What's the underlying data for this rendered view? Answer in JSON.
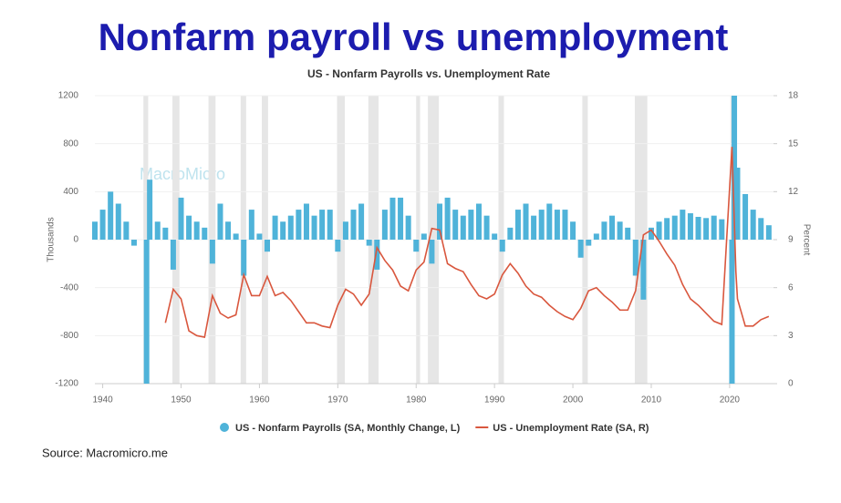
{
  "header": {
    "title": "Nonfarm payroll vs unemployment"
  },
  "chart_data": {
    "type": "bar-line",
    "title": "US - Nonfarm Payrolls vs. Unemployment Rate",
    "watermark": "MacroMicro",
    "ylabel": "Thousands",
    "y2label": "Percent",
    "xlim": [
      1939,
      2025.6
    ],
    "xticks": [
      1940,
      1950,
      1960,
      1970,
      1980,
      1990,
      2000,
      2010,
      2020
    ],
    "ylim": [
      -1200,
      1200
    ],
    "yticks": [
      -1200,
      -800,
      -400,
      0,
      400,
      800,
      1200
    ],
    "y2lim": [
      0,
      18
    ],
    "y2ticks": [
      0,
      3,
      6,
      9,
      12,
      15,
      18
    ],
    "recessions": [
      [
        1945.2,
        1945.8
      ],
      [
        1948.9,
        1949.8
      ],
      [
        1953.5,
        1954.4
      ],
      [
        1957.6,
        1958.3
      ],
      [
        1960.3,
        1961.1
      ],
      [
        1969.9,
        1970.9
      ],
      [
        1973.9,
        1975.2
      ],
      [
        1980.0,
        1980.5
      ],
      [
        1981.5,
        1982.9
      ],
      [
        1990.5,
        1991.2
      ],
      [
        2001.2,
        2001.9
      ],
      [
        2007.9,
        2009.5
      ],
      [
        2020.1,
        2020.3
      ]
    ],
    "series": [
      {
        "name": "US - Nonfarm Payrolls (SA, Monthly Change, L)",
        "color": "#4fb3d9",
        "kind": "bar",
        "x": [
          1939,
          1940,
          1941,
          1942,
          1943,
          1944,
          1945.6,
          1946,
          1947,
          1948,
          1949,
          1950,
          1951,
          1952,
          1953,
          1954,
          1955,
          1956,
          1957,
          1958,
          1959,
          1960,
          1961,
          1962,
          1963,
          1964,
          1965,
          1966,
          1967,
          1968,
          1969,
          1970,
          1971,
          1972,
          1973,
          1974,
          1975,
          1976,
          1977,
          1978,
          1979,
          1980,
          1981,
          1982,
          1983,
          1984,
          1985,
          1986,
          1987,
          1988,
          1989,
          1990,
          1991,
          1992,
          1993,
          1994,
          1995,
          1996,
          1997,
          1998,
          1999,
          2000,
          2001,
          2002,
          2003,
          2004,
          2005,
          2006,
          2007,
          2008,
          2009,
          2010,
          2011,
          2012,
          2013,
          2014,
          2015,
          2016,
          2017,
          2018,
          2019,
          2020.3,
          2020.6,
          2021,
          2022,
          2023,
          2024,
          2025
        ],
        "values": [
          150,
          250,
          400,
          300,
          150,
          -50,
          -1200,
          500,
          150,
          100,
          -250,
          350,
          200,
          150,
          100,
          -200,
          300,
          150,
          50,
          -300,
          250,
          50,
          -100,
          200,
          150,
          200,
          250,
          300,
          200,
          250,
          250,
          -100,
          150,
          250,
          300,
          -50,
          -250,
          250,
          350,
          350,
          200,
          -100,
          50,
          -200,
          300,
          350,
          250,
          200,
          250,
          300,
          200,
          50,
          -100,
          100,
          250,
          300,
          200,
          250,
          300,
          250,
          250,
          150,
          -150,
          -50,
          50,
          150,
          200,
          150,
          100,
          -300,
          -500,
          100,
          150,
          180,
          200,
          250,
          220,
          190,
          180,
          200,
          170,
          -1200,
          1200,
          600,
          380,
          250,
          180,
          120
        ]
      },
      {
        "name": "US - Unemployment Rate (SA, R)",
        "color": "#d9573e",
        "kind": "line",
        "axis": "y2",
        "x": [
          1948,
          1949,
          1950,
          1951,
          1952,
          1953,
          1954,
          1955,
          1956,
          1957,
          1958,
          1959,
          1960,
          1961,
          1962,
          1963,
          1964,
          1965,
          1966,
          1967,
          1968,
          1969,
          1970,
          1971,
          1972,
          1973,
          1974,
          1975,
          1976,
          1977,
          1978,
          1979,
          1980,
          1981,
          1982,
          1983,
          1984,
          1985,
          1986,
          1987,
          1988,
          1989,
          1990,
          1991,
          1992,
          1993,
          1994,
          1995,
          1996,
          1997,
          1998,
          1999,
          2000,
          2001,
          2002,
          2003,
          2004,
          2005,
          2006,
          2007,
          2008,
          2009,
          2010,
          2011,
          2012,
          2013,
          2014,
          2015,
          2016,
          2017,
          2018,
          2019,
          2020.3,
          2020.8,
          2021,
          2022,
          2023,
          2024,
          2025
        ],
        "values": [
          3.8,
          5.9,
          5.3,
          3.3,
          3.0,
          2.9,
          5.5,
          4.4,
          4.1,
          4.3,
          6.8,
          5.5,
          5.5,
          6.7,
          5.5,
          5.7,
          5.2,
          4.5,
          3.8,
          3.8,
          3.6,
          3.5,
          4.9,
          5.9,
          5.6,
          4.9,
          5.6,
          8.5,
          7.7,
          7.1,
          6.1,
          5.8,
          7.1,
          7.6,
          9.7,
          9.6,
          7.5,
          7.2,
          7.0,
          6.2,
          5.5,
          5.3,
          5.6,
          6.8,
          7.5,
          6.9,
          6.1,
          5.6,
          5.4,
          4.9,
          4.5,
          4.2,
          4.0,
          4.7,
          5.8,
          6.0,
          5.5,
          5.1,
          4.6,
          4.6,
          5.8,
          9.3,
          9.6,
          8.9,
          8.1,
          7.4,
          6.2,
          5.3,
          4.9,
          4.4,
          3.9,
          3.7,
          14.8,
          7.0,
          5.3,
          3.6,
          3.6,
          4.0,
          4.2
        ]
      }
    ]
  },
  "footer": {
    "source": "Source: Macromicro.me"
  }
}
